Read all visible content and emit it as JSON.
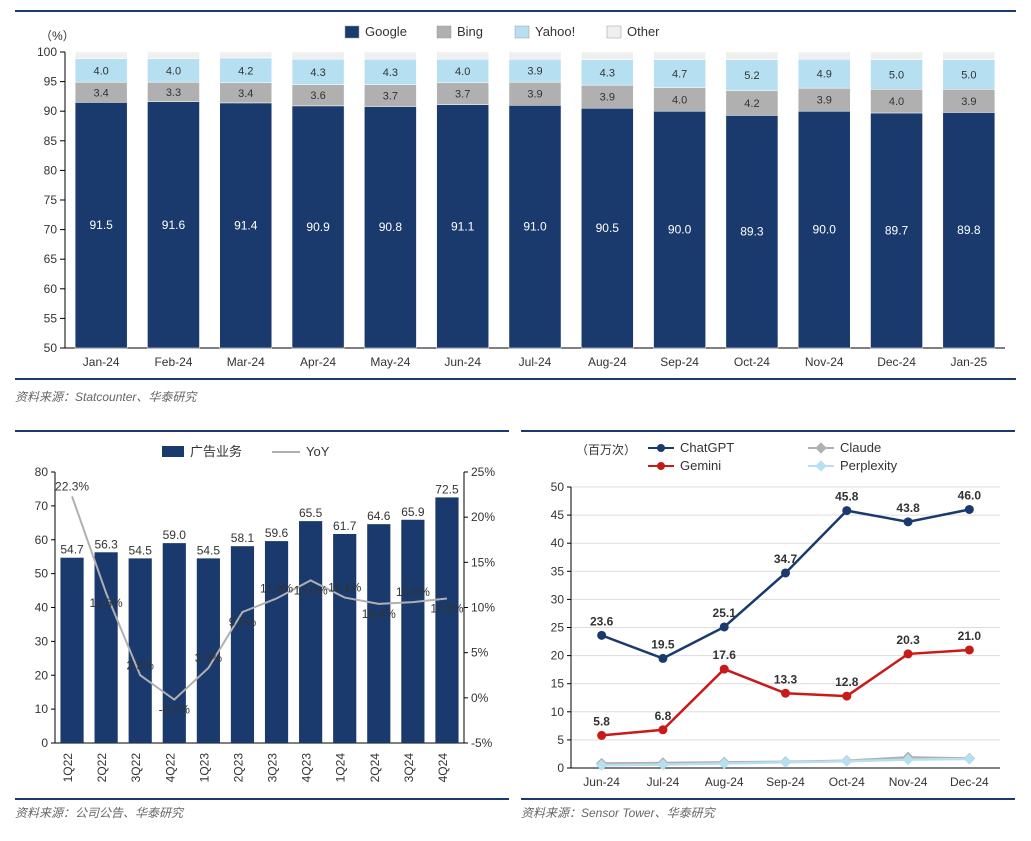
{
  "chart1": {
    "type": "stacked-bar",
    "y_unit": "（%）",
    "categories": [
      "Jan-24",
      "Feb-24",
      "Mar-24",
      "Apr-24",
      "May-24",
      "Jun-24",
      "Jul-24",
      "Aug-24",
      "Sep-24",
      "Oct-24",
      "Nov-24",
      "Dec-24",
      "Jan-25"
    ],
    "series": [
      {
        "name": "Google",
        "color": "#1a3a6e",
        "swatch": "rect",
        "values": [
          91.5,
          91.6,
          91.4,
          90.9,
          90.8,
          91.1,
          91.0,
          90.5,
          90.0,
          89.3,
          90.0,
          89.7,
          89.8
        ]
      },
      {
        "name": "Bing",
        "color": "#b0b0b0",
        "swatch": "rect",
        "values": [
          3.4,
          3.3,
          3.4,
          3.6,
          3.7,
          3.7,
          3.9,
          3.9,
          4.0,
          4.2,
          3.9,
          4.0,
          3.9
        ]
      },
      {
        "name": "Yahoo!",
        "color": "#b6e0f2",
        "swatch": "rect",
        "values": [
          4.0,
          4.0,
          4.2,
          4.3,
          4.3,
          4.0,
          3.9,
          4.3,
          4.7,
          5.2,
          4.9,
          5.0,
          5.0
        ]
      },
      {
        "name": "Other",
        "color": "#efefef",
        "swatch": "rect",
        "values": [
          1.1,
          1.1,
          1.0,
          1.2,
          1.2,
          1.2,
          1.2,
          1.3,
          1.3,
          1.3,
          1.2,
          1.3,
          1.3
        ]
      }
    ],
    "ylim": [
      50,
      100
    ],
    "ytick_step": 5,
    "bg": "#ffffff",
    "source": "资料来源：Statcounter、华泰研究"
  },
  "chart2": {
    "type": "bar+line",
    "categories": [
      "1Q22",
      "2Q22",
      "3Q22",
      "4Q22",
      "1Q23",
      "2Q23",
      "3Q23",
      "4Q23",
      "1Q24",
      "2Q24",
      "3Q24",
      "4Q24"
    ],
    "bar": {
      "name": "广告业务",
      "color": "#1a3a6e",
      "values": [
        54.7,
        56.3,
        54.5,
        59.0,
        54.5,
        58.1,
        59.6,
        65.5,
        61.7,
        64.6,
        65.9,
        72.5
      ]
    },
    "line": {
      "name": "YoY",
      "color": "#b0b0b0",
      "values_pct": [
        22.3,
        11.6,
        2.5,
        -0.2,
        3.3,
        9.5,
        11.0,
        13.0,
        11.1,
        10.4,
        10.6,
        11.0
      ]
    },
    "ylim_left": [
      0,
      80
    ],
    "ytick_left_step": 10,
    "ylim_right": [
      -5,
      25
    ],
    "ytick_right_step": 5,
    "source": "资料来源：公司公告、华泰研究"
  },
  "chart3": {
    "type": "line",
    "y_unit": "（百万次）",
    "categories": [
      "Jun-24",
      "Jul-24",
      "Aug-24",
      "Sep-24",
      "Oct-24",
      "Nov-24",
      "Dec-24"
    ],
    "series": [
      {
        "name": "ChatGPT",
        "color": "#1a3a6e",
        "marker": "circle",
        "values": [
          23.6,
          19.5,
          25.1,
          34.7,
          45.8,
          43.8,
          46.0
        ],
        "show_labels": true
      },
      {
        "name": "Claude",
        "color": "#b0b0b0",
        "marker": "diamond",
        "values": [
          0.8,
          0.9,
          1.0,
          1.1,
          1.3,
          1.9,
          1.7
        ],
        "show_labels": false
      },
      {
        "name": "Gemini",
        "color": "#c91a1a",
        "marker": "circle",
        "values": [
          5.8,
          6.8,
          17.6,
          13.3,
          12.8,
          20.3,
          21.0
        ],
        "show_labels": true
      },
      {
        "name": "Perplexity",
        "color": "#b6e0f2",
        "marker": "diamond",
        "values": [
          0.5,
          0.6,
          0.8,
          1.0,
          1.2,
          1.5,
          1.6
        ],
        "show_labels": false
      }
    ],
    "ylim": [
      0,
      50
    ],
    "ytick_step": 5,
    "source": "资料来源：Sensor Tower、华泰研究"
  }
}
